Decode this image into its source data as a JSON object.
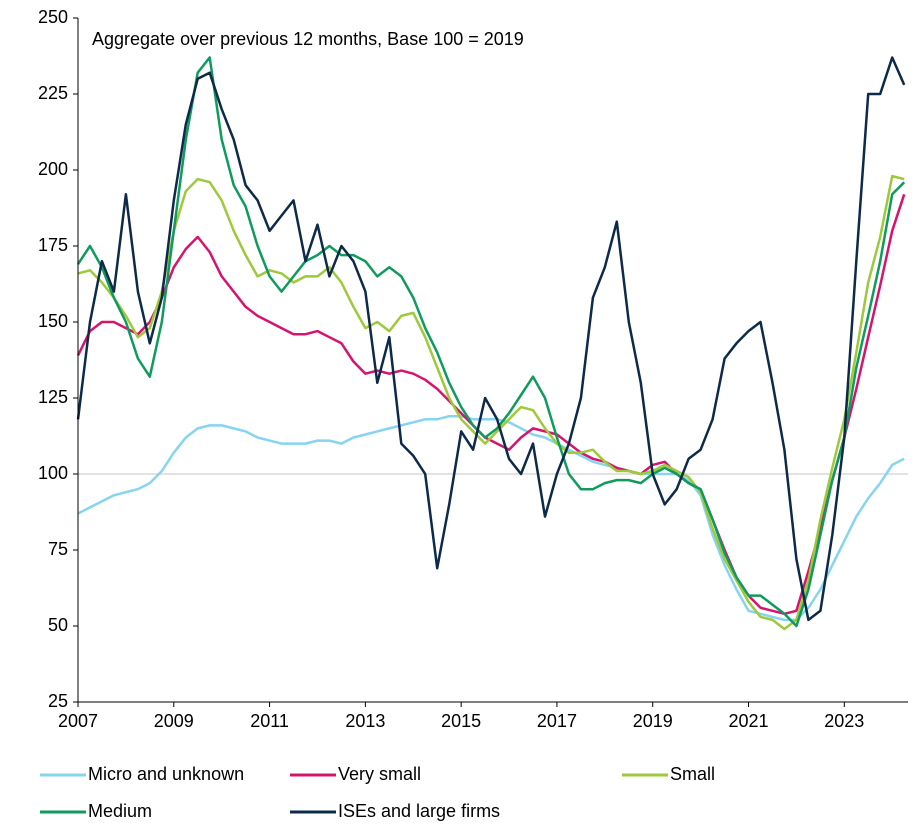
{
  "chart_data": {
    "type": "line",
    "annotation": "Aggregate over previous 12 months, Base 100 = 2019",
    "x": [
      2007,
      2007.25,
      2007.5,
      2007.75,
      2008,
      2008.25,
      2008.5,
      2008.75,
      2009,
      2009.25,
      2009.5,
      2009.75,
      2010,
      2010.25,
      2010.5,
      2010.75,
      2011,
      2011.25,
      2011.5,
      2011.75,
      2012,
      2012.25,
      2012.5,
      2012.75,
      2013,
      2013.25,
      2013.5,
      2013.75,
      2014,
      2014.25,
      2014.5,
      2014.75,
      2015,
      2015.25,
      2015.5,
      2015.75,
      2016,
      2016.25,
      2016.5,
      2016.75,
      2017,
      2017.25,
      2017.5,
      2017.75,
      2018,
      2018.25,
      2018.5,
      2018.75,
      2019,
      2019.25,
      2019.5,
      2019.75,
      2020,
      2020.25,
      2020.5,
      2020.75,
      2021,
      2021.25,
      2021.5,
      2021.75,
      2022,
      2022.25,
      2022.5,
      2022.75,
      2023,
      2023.25,
      2023.5,
      2023.75,
      2024,
      2024.25
    ],
    "series": [
      {
        "name": "Micro and unknown",
        "color": "#87d4f0",
        "values": [
          87,
          89,
          91,
          93,
          94,
          95,
          97,
          101,
          107,
          112,
          115,
          116,
          116,
          115,
          114,
          112,
          111,
          110,
          110,
          110,
          111,
          111,
          110,
          112,
          113,
          114,
          115,
          116,
          117,
          118,
          118,
          119,
          119,
          118,
          118,
          118,
          117,
          115,
          113,
          112,
          110,
          108,
          106,
          104,
          103,
          102,
          101,
          100,
          100,
          100,
          100,
          98,
          93,
          80,
          70,
          62,
          55,
          54,
          53,
          52,
          52,
          56,
          62,
          70,
          78,
          86,
          92,
          97,
          103,
          105
        ]
      },
      {
        "name": "Very small",
        "color": "#d6146f",
        "values": [
          139,
          147,
          150,
          150,
          148,
          146,
          150,
          158,
          168,
          174,
          178,
          173,
          165,
          160,
          155,
          152,
          150,
          148,
          146,
          146,
          147,
          145,
          143,
          137,
          133,
          134,
          133,
          134,
          133,
          131,
          128,
          124,
          120,
          116,
          112,
          110,
          108,
          112,
          115,
          114,
          113,
          110,
          107,
          105,
          104,
          102,
          101,
          100,
          103,
          104,
          100,
          97,
          95,
          85,
          75,
          66,
          60,
          56,
          55,
          54,
          55,
          68,
          82,
          98,
          112,
          128,
          145,
          162,
          180,
          192
        ]
      },
      {
        "name": "Small",
        "color": "#9dc93b",
        "values": [
          166,
          167,
          163,
          158,
          152,
          145,
          148,
          160,
          180,
          193,
          197,
          196,
          190,
          180,
          172,
          165,
          167,
          166,
          163,
          165,
          165,
          168,
          163,
          155,
          148,
          150,
          147,
          152,
          153,
          145,
          135,
          125,
          118,
          114,
          110,
          114,
          118,
          122,
          121,
          115,
          110,
          107,
          107,
          108,
          104,
          101,
          101,
          100,
          101,
          103,
          101,
          99,
          94,
          82,
          72,
          65,
          58,
          53,
          52,
          49,
          52,
          65,
          85,
          102,
          118,
          140,
          163,
          178,
          198,
          197
        ]
      },
      {
        "name": "Medium",
        "color": "#109b5e",
        "values": [
          169,
          175,
          168,
          158,
          150,
          138,
          132,
          150,
          180,
          210,
          232,
          237,
          210,
          195,
          188,
          175,
          165,
          160,
          165,
          170,
          172,
          175,
          172,
          172,
          170,
          165,
          168,
          165,
          158,
          148,
          140,
          130,
          122,
          116,
          112,
          115,
          120,
          126,
          132,
          125,
          112,
          100,
          95,
          95,
          97,
          98,
          98,
          97,
          100,
          102,
          100,
          97,
          95,
          85,
          74,
          66,
          60,
          60,
          57,
          54,
          50,
          62,
          80,
          98,
          112,
          135,
          152,
          170,
          192,
          196
        ]
      },
      {
        "name": "ISEs and large firms",
        "color": "#0d2a4a",
        "values": [
          118,
          150,
          170,
          160,
          192,
          160,
          143,
          158,
          190,
          215,
          230,
          232,
          220,
          210,
          195,
          190,
          180,
          185,
          190,
          170,
          182,
          165,
          175,
          170,
          160,
          130,
          145,
          110,
          106,
          100,
          69,
          90,
          114,
          108,
          125,
          118,
          105,
          100,
          110,
          86,
          100,
          110,
          125,
          158,
          168,
          183,
          150,
          130,
          100,
          90,
          95,
          105,
          108,
          118,
          138,
          143,
          147,
          150,
          130,
          108,
          72,
          52,
          55,
          80,
          112,
          170,
          225,
          225,
          237,
          228
        ]
      }
    ],
    "xlim": [
      2007,
      2024.33
    ],
    "xticks": [
      2007,
      2009,
      2011,
      2013,
      2015,
      2017,
      2019,
      2021,
      2023
    ],
    "ylim": [
      25,
      250
    ],
    "yticks": [
      25,
      50,
      75,
      100,
      125,
      150,
      175,
      200,
      225,
      250
    ],
    "reference_line": 100,
    "grid": false
  }
}
